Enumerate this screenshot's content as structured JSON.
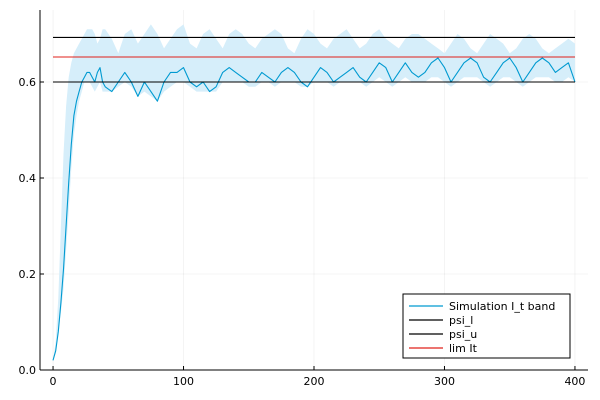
{
  "chart_data": {
    "type": "line",
    "title": "",
    "xlabel": "",
    "ylabel": "",
    "xlim": [
      -10,
      410
    ],
    "ylim": [
      0,
      0.75
    ],
    "xticks": [
      0,
      100,
      200,
      300,
      400
    ],
    "yticks": [
      0.0,
      0.2,
      0.4,
      0.6
    ],
    "xtick_labels": [
      "0",
      "100",
      "200",
      "300",
      "400"
    ],
    "ytick_labels": [
      "0.0",
      "0.2",
      "0.4",
      "0.6"
    ],
    "grid": true,
    "legend_position": "bottom-right",
    "series": [
      {
        "name": "Simulation I_t band",
        "kind": "band-line",
        "color": "#009AD1",
        "band_color": "#D6EEFA",
        "x": [
          0,
          2,
          4,
          6,
          8,
          10,
          12,
          14,
          16,
          18,
          20,
          22,
          24,
          26,
          28,
          30,
          32,
          34,
          36,
          38,
          40,
          45,
          50,
          55,
          60,
          65,
          70,
          75,
          80,
          85,
          90,
          95,
          100,
          105,
          110,
          115,
          120,
          125,
          130,
          135,
          140,
          145,
          150,
          155,
          160,
          165,
          170,
          175,
          180,
          185,
          190,
          195,
          200,
          205,
          210,
          215,
          220,
          225,
          230,
          235,
          240,
          245,
          250,
          255,
          260,
          265,
          270,
          275,
          280,
          285,
          290,
          295,
          300,
          305,
          310,
          315,
          320,
          325,
          330,
          335,
          340,
          345,
          350,
          355,
          360,
          365,
          370,
          375,
          380,
          385,
          390,
          395,
          400
        ],
        "y": [
          0.02,
          0.04,
          0.08,
          0.14,
          0.21,
          0.3,
          0.39,
          0.47,
          0.53,
          0.56,
          0.58,
          0.6,
          0.61,
          0.62,
          0.62,
          0.61,
          0.6,
          0.62,
          0.63,
          0.6,
          0.59,
          0.58,
          0.6,
          0.62,
          0.6,
          0.57,
          0.6,
          0.58,
          0.56,
          0.6,
          0.62,
          0.62,
          0.63,
          0.6,
          0.59,
          0.6,
          0.58,
          0.59,
          0.62,
          0.63,
          0.62,
          0.61,
          0.6,
          0.6,
          0.62,
          0.61,
          0.6,
          0.62,
          0.63,
          0.62,
          0.6,
          0.59,
          0.61,
          0.63,
          0.62,
          0.6,
          0.61,
          0.62,
          0.63,
          0.61,
          0.6,
          0.62,
          0.64,
          0.63,
          0.6,
          0.62,
          0.64,
          0.62,
          0.61,
          0.62,
          0.64,
          0.65,
          0.63,
          0.6,
          0.62,
          0.64,
          0.65,
          0.64,
          0.61,
          0.6,
          0.62,
          0.64,
          0.65,
          0.63,
          0.6,
          0.62,
          0.64,
          0.65,
          0.64,
          0.62,
          0.63,
          0.64,
          0.6
        ],
        "band_lower": [
          0.02,
          0.04,
          0.08,
          0.12,
          0.17,
          0.25,
          0.33,
          0.42,
          0.49,
          0.53,
          0.56,
          0.58,
          0.6,
          0.6,
          0.6,
          0.59,
          0.58,
          0.59,
          0.6,
          0.58,
          0.58,
          0.58,
          0.59,
          0.6,
          0.59,
          0.57,
          0.58,
          0.57,
          0.56,
          0.58,
          0.59,
          0.6,
          0.6,
          0.59,
          0.58,
          0.58,
          0.58,
          0.58,
          0.6,
          0.6,
          0.6,
          0.6,
          0.59,
          0.59,
          0.6,
          0.6,
          0.59,
          0.6,
          0.6,
          0.6,
          0.59,
          0.59,
          0.6,
          0.6,
          0.6,
          0.59,
          0.6,
          0.6,
          0.6,
          0.6,
          0.59,
          0.6,
          0.61,
          0.6,
          0.59,
          0.6,
          0.61,
          0.6,
          0.6,
          0.6,
          0.61,
          0.61,
          0.6,
          0.59,
          0.6,
          0.61,
          0.61,
          0.61,
          0.6,
          0.59,
          0.6,
          0.61,
          0.61,
          0.6,
          0.59,
          0.6,
          0.61,
          0.61,
          0.61,
          0.6,
          0.6,
          0.61,
          0.6
        ],
        "band_upper": [
          0.02,
          0.06,
          0.15,
          0.3,
          0.45,
          0.55,
          0.61,
          0.64,
          0.66,
          0.67,
          0.68,
          0.69,
          0.7,
          0.71,
          0.71,
          0.71,
          0.7,
          0.68,
          0.69,
          0.71,
          0.71,
          0.69,
          0.66,
          0.7,
          0.71,
          0.68,
          0.7,
          0.72,
          0.7,
          0.67,
          0.69,
          0.71,
          0.72,
          0.68,
          0.67,
          0.7,
          0.71,
          0.69,
          0.67,
          0.7,
          0.71,
          0.7,
          0.68,
          0.67,
          0.69,
          0.7,
          0.71,
          0.7,
          0.67,
          0.66,
          0.69,
          0.71,
          0.7,
          0.68,
          0.67,
          0.69,
          0.7,
          0.71,
          0.69,
          0.67,
          0.68,
          0.7,
          0.71,
          0.69,
          0.68,
          0.67,
          0.69,
          0.7,
          0.7,
          0.69,
          0.68,
          0.67,
          0.66,
          0.68,
          0.7,
          0.69,
          0.67,
          0.66,
          0.68,
          0.7,
          0.69,
          0.68,
          0.66,
          0.67,
          0.69,
          0.7,
          0.69,
          0.67,
          0.66,
          0.67,
          0.68,
          0.69,
          0.68
        ]
      },
      {
        "name": "psi_l",
        "kind": "hline",
        "color": "#000000",
        "x": [
          0,
          400
        ],
        "y": [
          0.6,
          0.6
        ]
      },
      {
        "name": "psi_u",
        "kind": "hline",
        "color": "#000000",
        "x": [
          0,
          400
        ],
        "y": [
          0.693,
          0.693
        ]
      },
      {
        "name": "lim It",
        "kind": "hline",
        "color": "#E0201B",
        "x": [
          0,
          400
        ],
        "y": [
          0.652,
          0.652
        ]
      }
    ]
  }
}
